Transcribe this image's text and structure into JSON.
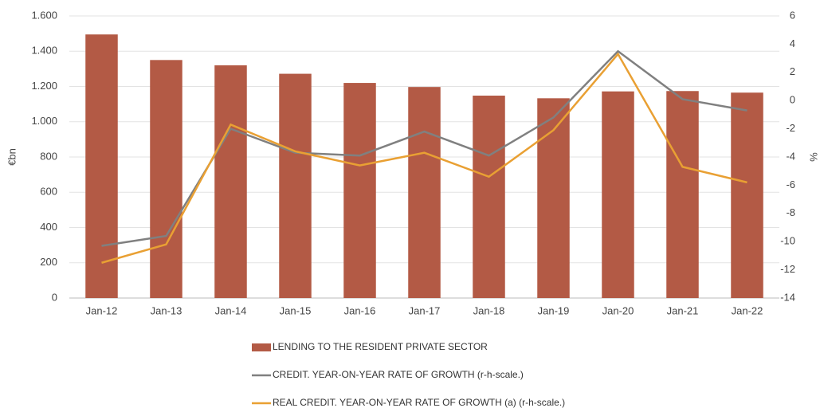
{
  "chart_data": {
    "type": "bar",
    "y_label": "€bn",
    "y2_label": "%",
    "categories": [
      "Jan-12",
      "Jan-13",
      "Jan-14",
      "Jan-15",
      "Jan-16",
      "Jan-17",
      "Jan-18",
      "Jan-19",
      "Jan-20",
      "Jan-21",
      "Jan-22"
    ],
    "series": [
      {
        "name": "LENDING TO THE RESIDENT PRIVATE SECTOR",
        "type": "bar",
        "color": "#b35a45",
        "values": [
          1495,
          1350,
          1320,
          1272,
          1220,
          1197,
          1148,
          1133,
          1172,
          1174,
          1165
        ]
      },
      {
        "name": "CREDIT. YEAR-ON-YEAR RATE OF GROWTH (r-h-scale.)",
        "type": "line",
        "axis": "y2",
        "color": "#808080",
        "values": [
          -10.3,
          -9.6,
          -2.0,
          -3.7,
          -3.9,
          -2.2,
          -3.9,
          -1.2,
          3.5,
          0.1,
          -0.7
        ]
      },
      {
        "name": "REAL CREDIT. YEAR-ON-YEAR RATE OF GROWTH (a) (r-h-scale.)",
        "type": "line",
        "axis": "y2",
        "color": "#e9a033",
        "values": [
          -11.5,
          -10.2,
          -1.7,
          -3.6,
          -4.6,
          -3.7,
          -5.4,
          -2.1,
          3.3,
          -4.7,
          -5.8
        ]
      }
    ],
    "ylim": [
      0,
      1600
    ],
    "yticks": [
      0,
      200,
      400,
      600,
      800,
      {
        "value": 1000,
        "label": "1.000"
      },
      {
        "value": 1200,
        "label": "1.200"
      },
      {
        "value": 1400,
        "label": "1.400"
      },
      {
        "value": 1600,
        "label": "1.600"
      }
    ],
    "y2lim": [
      -14,
      6
    ],
    "y2ticks": [
      -14,
      -12,
      -10,
      -8,
      -6,
      -4,
      -2,
      0,
      2,
      4,
      6
    ],
    "grid": true
  }
}
